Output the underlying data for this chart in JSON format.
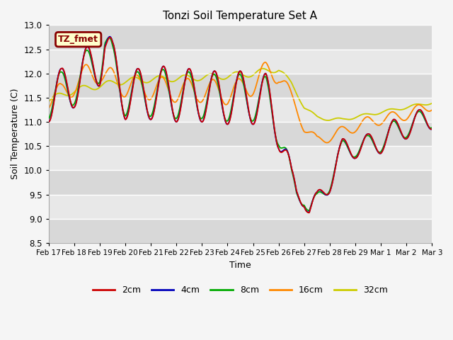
{
  "title": "Tonzi Soil Temperature Set A",
  "xlabel": "Time",
  "ylabel": "Soil Temperature (C)",
  "ylim": [
    8.5,
    13.0
  ],
  "yticks": [
    8.5,
    9.0,
    9.5,
    10.0,
    10.5,
    11.0,
    11.5,
    12.0,
    12.5,
    13.0
  ],
  "line_colors": {
    "2cm": "#cc0000",
    "4cm": "#0000bb",
    "8cm": "#00aa00",
    "16cm": "#ff8800",
    "32cm": "#cccc00"
  },
  "label_box_text": "TZ_fmet",
  "label_box_bg": "#ffffcc",
  "label_box_border": "#880000",
  "fig_bg": "#f5f5f5",
  "plot_bg_light": "#e8e8e8",
  "plot_bg_dark": "#d8d8d8",
  "xtick_labels": [
    "Feb 17",
    "Feb 18",
    "Feb 19",
    "Feb 20",
    "Feb 21",
    "Feb 22",
    "Feb 23",
    "Feb 24",
    "Feb 25",
    "Feb 26",
    "Feb 27",
    "Feb 28",
    "Feb 29",
    "Mar 1",
    "Mar 2",
    "Mar 3"
  ],
  "xtick_positions": [
    0,
    1,
    2,
    3,
    4,
    5,
    6,
    7,
    8,
    9,
    10,
    11,
    12,
    13,
    14,
    15
  ]
}
